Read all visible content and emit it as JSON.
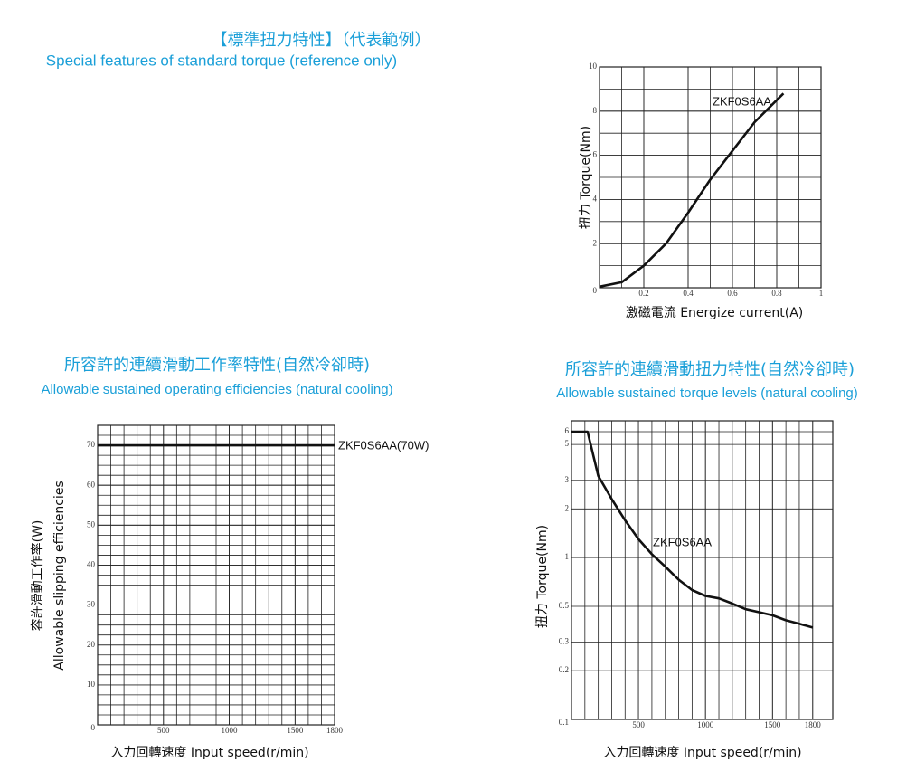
{
  "header": {
    "title": "【標準扭力特性】（代表範例）",
    "subtitle": "Special features of standard torque  (reference only)"
  },
  "chart_data": [
    {
      "type": "line",
      "x_label": "激磁電流 Energize current(A)",
      "y_label": "扭力 Torque(Nm)",
      "x": [
        0,
        0.1,
        0.2,
        0.3,
        0.4,
        0.5,
        0.6,
        0.7,
        0.83
      ],
      "series": [
        {
          "name": "ZKF0S6AA",
          "color": "#111111",
          "values": [
            0.05,
            0.25,
            1.0,
            2.0,
            3.4,
            4.9,
            6.2,
            7.5,
            8.8
          ]
        }
      ],
      "xlim": [
        0,
        1
      ],
      "ylim": [
        0,
        10
      ],
      "xticks": [
        0.2,
        0.4,
        0.6,
        0.8,
        1
      ],
      "yticks": [
        0,
        2,
        4,
        6,
        8,
        10
      ],
      "grid": true,
      "log_y": false
    },
    {
      "type": "line",
      "title": "所容許的連續滑動工作率特性(自然冷卻時)",
      "subtitle": "Allowable sustained operating efficiencies (natural cooling)",
      "x_label": "入力回轉速度 Input speed(r/min)",
      "y_label": [
        "容許滑動工作率(W)",
        "Allowable slipping efficiencies"
      ],
      "x": [
        0,
        1800
      ],
      "series": [
        {
          "name": "ZKF0S6AA(70W)",
          "color": "#111111",
          "values": [
            70,
            70
          ]
        }
      ],
      "xlim": [
        0,
        1800
      ],
      "ylim": [
        0,
        75
      ],
      "xticks": [
        500,
        1000,
        1500,
        1800
      ],
      "yticks": [
        0,
        10,
        20,
        30,
        40,
        50,
        60,
        70
      ],
      "grid": true,
      "log_y": false
    },
    {
      "type": "line",
      "title": "所容許的連續滑動扭力特性(自然冷卻時)",
      "subtitle": "Allowable sustained torque levels  (natural cooling)",
      "x_label": "入力回轉速度 Input speed(r/min)",
      "y_label": "扭力 Torque(Nm)",
      "x": [
        0,
        120,
        200,
        300,
        400,
        500,
        600,
        700,
        800,
        900,
        1000,
        1100,
        1200,
        1300,
        1400,
        1500,
        1600,
        1700,
        1800
      ],
      "series": [
        {
          "name": "ZKF0S6AA",
          "color": "#111111",
          "values": [
            6,
            6,
            3.2,
            2.3,
            1.7,
            1.3,
            1.05,
            0.88,
            0.73,
            0.63,
            0.58,
            0.56,
            0.52,
            0.48,
            0.46,
            0.44,
            0.41,
            0.39,
            0.37
          ]
        }
      ],
      "xlim": [
        0,
        1950
      ],
      "ylim": [
        0.1,
        7
      ],
      "xticks": [
        500,
        1000,
        1500,
        1800
      ],
      "yticks": [
        0.1,
        0.2,
        0.3,
        0.5,
        1,
        2,
        3,
        5,
        6
      ],
      "grid": true,
      "log_y": true
    }
  ]
}
